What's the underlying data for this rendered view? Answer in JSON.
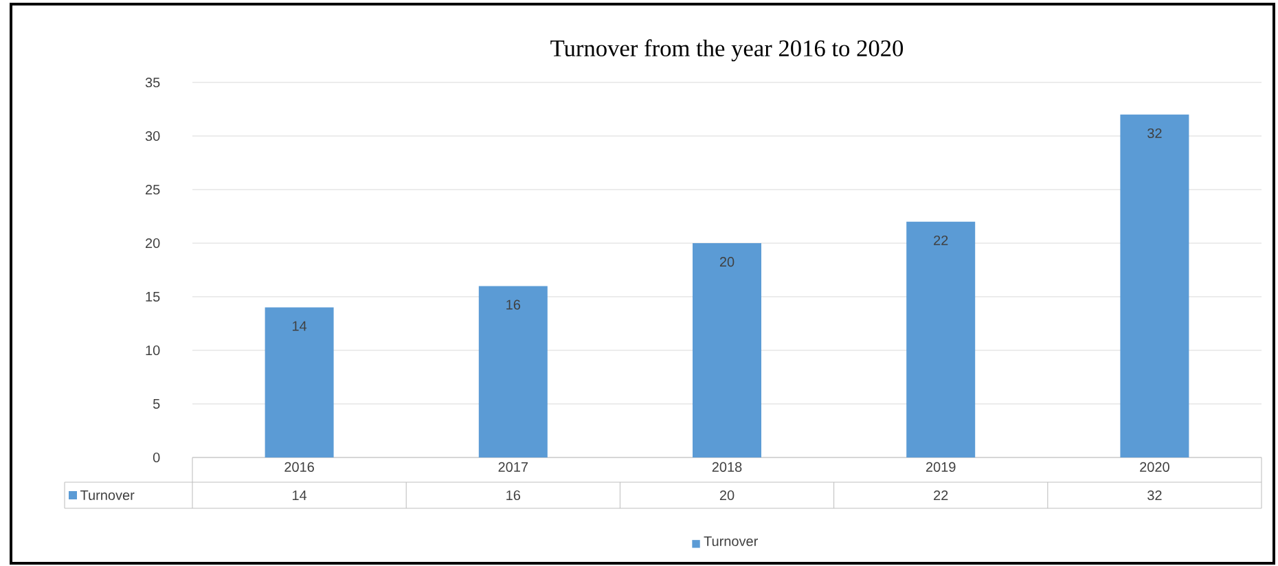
{
  "chart_data": {
    "type": "bar",
    "title": "Turnover from the year 2016 to 2020",
    "categories": [
      "2016",
      "2017",
      "2018",
      "2019",
      "2020"
    ],
    "series": [
      {
        "name": "Turnover",
        "color": "#5b9bd5",
        "values": [
          14,
          16,
          20,
          22,
          32
        ],
        "value_labels": [
          "14",
          "16",
          "20",
          "22",
          "32"
        ]
      }
    ],
    "ylim": [
      0,
      35
    ],
    "yticks": [
      0,
      5,
      10,
      15,
      20,
      25,
      30,
      35
    ],
    "grid": "y",
    "data_labels": true,
    "legend": "bottom"
  }
}
